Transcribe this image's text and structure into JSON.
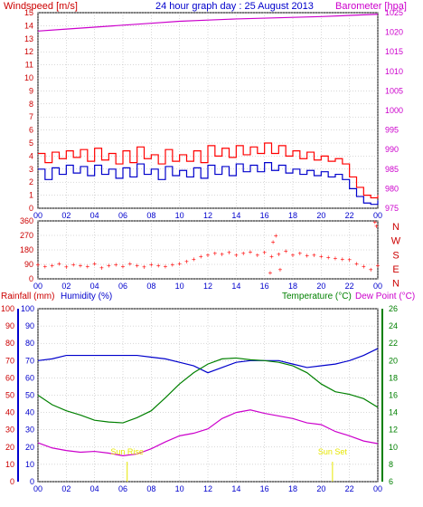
{
  "header": {
    "left_title": "Windspeed [m/s]",
    "center_title": "24 hour graph day : 25 August 2013",
    "right_title": "Barometer [hpa]"
  },
  "colors": {
    "wind_avg": "#0000cc",
    "wind_gust": "#ff0000",
    "barometer": "#cc00cc",
    "direction": "#ff0000",
    "humidity": "#0000cc",
    "temperature": "#008000",
    "dewpoint": "#cc00cc",
    "rain_axis": "#cc0000",
    "sun_marker": "#e6e600",
    "grid": "#b0b0b0",
    "frame": "#000000"
  },
  "panel_labels": {
    "rainfall": "Rainfall (mm)",
    "humidity": "Humidity (%)",
    "temperature": "Temperature (°C)",
    "dewpoint": "Dew Point (°C)",
    "sunrise": "Sun Rise",
    "sunset": "Sun Set"
  },
  "chart_data": [
    {
      "type": "line",
      "title": "24 hour graph day : 25 August 2013",
      "ylabel_left": "Windspeed [m/s]",
      "ylabel_right": "Barometer [hpa]",
      "x_ticks": [
        "00",
        "02",
        "04",
        "06",
        "08",
        "10",
        "12",
        "14",
        "16",
        "18",
        "20",
        "22",
        "00"
      ],
      "y_left_ticks": [
        "0",
        "1",
        "2",
        "3",
        "4",
        "5",
        "6",
        "7",
        "8",
        "9",
        "10",
        "11",
        "12",
        "13",
        "14",
        "15"
      ],
      "y_right_ticks": [
        "975",
        "980",
        "985",
        "990",
        "995",
        "1000",
        "1005",
        "1010",
        "1015",
        "1020",
        "1025"
      ],
      "ylim_left": [
        0,
        15
      ],
      "ylim_right": [
        975,
        1025
      ],
      "series": [
        {
          "name": "Windspeed gust",
          "x": [
            0,
            0.5,
            1,
            1.5,
            2,
            2.5,
            3,
            3.5,
            4,
            4.5,
            5,
            5.5,
            6,
            6.5,
            7,
            7.5,
            8,
            8.5,
            9,
            9.5,
            10,
            10.5,
            11,
            11.5,
            12,
            12.5,
            13,
            13.5,
            14,
            14.5,
            15,
            15.5,
            16,
            16.5,
            17,
            17.5,
            18,
            18.5,
            19,
            19.5,
            20,
            20.5,
            21,
            21.5,
            22,
            22.5,
            23,
            23.5,
            24
          ],
          "values": [
            4.2,
            3.5,
            4.3,
            3.8,
            4.4,
            3.9,
            4.5,
            3.6,
            4.6,
            3.7,
            4.2,
            3.4,
            4.4,
            3.5,
            4.7,
            3.8,
            4.1,
            3.4,
            4.5,
            3.6,
            4.1,
            3.6,
            4.4,
            3.5,
            4.8,
            4.0,
            4.6,
            3.9,
            4.8,
            4.1,
            4.7,
            4.2,
            5.0,
            4.2,
            4.8,
            4.0,
            4.4,
            3.8,
            4.3,
            3.7,
            4.0,
            3.6,
            3.8,
            3.4,
            2.4,
            1.6,
            1.0,
            0.8,
            1.0
          ]
        },
        {
          "name": "Windspeed average",
          "x": [
            0,
            0.5,
            1,
            1.5,
            2,
            2.5,
            3,
            3.5,
            4,
            4.5,
            5,
            5.5,
            6,
            6.5,
            7,
            7.5,
            8,
            8.5,
            9,
            9.5,
            10,
            10.5,
            11,
            11.5,
            12,
            12.5,
            13,
            13.5,
            14,
            14.5,
            15,
            15.5,
            16,
            16.5,
            17,
            17.5,
            18,
            18.5,
            19,
            19.5,
            20,
            20.5,
            21,
            21.5,
            22,
            22.5,
            23,
            23.5,
            24
          ],
          "values": [
            3.0,
            2.2,
            3.1,
            2.6,
            3.3,
            2.7,
            3.2,
            2.5,
            3.3,
            2.6,
            3.0,
            2.3,
            3.1,
            2.4,
            3.4,
            2.6,
            3.0,
            2.2,
            3.2,
            2.5,
            2.9,
            2.4,
            3.1,
            2.3,
            3.3,
            2.6,
            3.2,
            2.5,
            3.4,
            2.8,
            3.3,
            2.8,
            3.5,
            2.9,
            3.3,
            2.7,
            3.0,
            2.6,
            2.9,
            2.5,
            2.8,
            2.4,
            2.6,
            2.2,
            1.5,
            0.9,
            0.4,
            0.3,
            0.6
          ]
        },
        {
          "name": "Barometer",
          "axis": "right",
          "x": [
            0,
            2,
            4,
            6,
            8,
            10,
            12,
            14,
            16,
            18,
            20,
            22,
            24
          ],
          "values": [
            1020.3,
            1020.8,
            1021.3,
            1021.8,
            1022.3,
            1022.8,
            1023.1,
            1023.4,
            1023.6,
            1023.8,
            1024.0,
            1024.3,
            1024.6
          ]
        }
      ]
    },
    {
      "type": "scatter",
      "title": "",
      "ylabel_right": [
        "N",
        "W",
        "S",
        "E",
        "N"
      ],
      "y_ticks": [
        "360",
        "270",
        "180",
        "90",
        "0"
      ],
      "ylim": [
        0,
        360
      ],
      "x_ticks": [
        "00",
        "02",
        "04",
        "06",
        "08",
        "10",
        "12",
        "14",
        "16",
        "18",
        "20",
        "22",
        "00"
      ],
      "series": [
        {
          "name": "Wind direction",
          "x": [
            0,
            0.5,
            1,
            1.5,
            2,
            2.5,
            3,
            3.5,
            4,
            4.5,
            5,
            5.5,
            6,
            6.5,
            7,
            7.5,
            8,
            8.5,
            9,
            9.5,
            10,
            10.5,
            11,
            11.5,
            12,
            12.5,
            13,
            13.5,
            14,
            14.5,
            15,
            15.5,
            16,
            16.5,
            17,
            17.5,
            18,
            18.5,
            19,
            19.5,
            20,
            20.5,
            21,
            21.5,
            22,
            22.5,
            23,
            23.5,
            24
          ],
          "values": [
            90,
            80,
            85,
            95,
            75,
            90,
            85,
            80,
            95,
            70,
            85,
            90,
            80,
            95,
            85,
            75,
            90,
            85,
            80,
            90,
            95,
            110,
            125,
            140,
            150,
            160,
            155,
            165,
            150,
            160,
            170,
            150,
            165,
            140,
            155,
            175,
            150,
            160,
            145,
            150,
            140,
            135,
            130,
            125,
            120,
            95,
            80,
            60,
            85
          ]
        },
        {
          "name": "Wind direction (outliers)",
          "x": [
            16.8,
            16.6,
            17.1,
            16.4,
            23.8,
            23.9
          ],
          "values": [
            270,
            230,
            60,
            40,
            355,
            330
          ]
        }
      ]
    },
    {
      "type": "line",
      "title": "",
      "x_ticks": [
        "00",
        "02",
        "04",
        "06",
        "08",
        "10",
        "12",
        "14",
        "16",
        "18",
        "20",
        "22",
        "00"
      ],
      "rain_ticks": [
        "0",
        "10",
        "20",
        "30",
        "40",
        "50",
        "60",
        "70",
        "80",
        "90",
        "100"
      ],
      "hum_ticks": [
        "0",
        "10",
        "20",
        "30",
        "40",
        "50",
        "60",
        "70",
        "80",
        "90",
        "100"
      ],
      "temp_ticks": [
        "6",
        "8",
        "10",
        "12",
        "14",
        "16",
        "18",
        "20",
        "22",
        "24",
        "26"
      ],
      "ylim_humidity": [
        0,
        100
      ],
      "ylim_temperature": [
        6,
        26
      ],
      "series": [
        {
          "name": "Humidity",
          "axis": "humidity",
          "x": [
            0,
            1,
            2,
            3,
            4,
            5,
            6,
            7,
            8,
            9,
            10,
            11,
            12,
            13,
            14,
            15,
            16,
            17,
            18,
            19,
            20,
            21,
            22,
            23,
            24
          ],
          "values": [
            70,
            71,
            73,
            73,
            73,
            73,
            73,
            73,
            72,
            71,
            69,
            67,
            63,
            66,
            69,
            70,
            70,
            70,
            68,
            66,
            67,
            68,
            70,
            73,
            77
          ]
        },
        {
          "name": "Temperature",
          "axis": "temperature",
          "x": [
            0,
            1,
            2,
            3,
            4,
            5,
            6,
            7,
            8,
            9,
            10,
            11,
            12,
            13,
            14,
            15,
            16,
            17,
            18,
            19,
            20,
            21,
            22,
            23,
            24
          ],
          "values": [
            16.0,
            14.9,
            14.2,
            13.7,
            13.1,
            12.9,
            12.8,
            13.4,
            14.2,
            15.7,
            17.3,
            18.6,
            19.6,
            20.2,
            20.3,
            20.1,
            20.0,
            19.8,
            19.4,
            18.6,
            17.3,
            16.4,
            16.1,
            15.6,
            14.6
          ]
        },
        {
          "name": "Dew Point",
          "axis": "temperature",
          "x": [
            0,
            1,
            2,
            3,
            4,
            5,
            6,
            7,
            8,
            9,
            10,
            11,
            12,
            13,
            14,
            15,
            16,
            17,
            18,
            19,
            20,
            21,
            22,
            23,
            24
          ],
          "values": [
            10.5,
            9.9,
            9.6,
            9.4,
            9.5,
            9.3,
            9.0,
            9.2,
            9.8,
            10.6,
            11.3,
            11.6,
            12.1,
            13.3,
            14.0,
            14.3,
            13.9,
            13.6,
            13.3,
            12.8,
            12.6,
            11.8,
            11.3,
            10.7,
            10.4
          ]
        }
      ],
      "annotations": [
        {
          "text": "Sun Rise",
          "x": 6.3
        },
        {
          "text": "Sun Set",
          "x": 20.8
        }
      ]
    }
  ]
}
